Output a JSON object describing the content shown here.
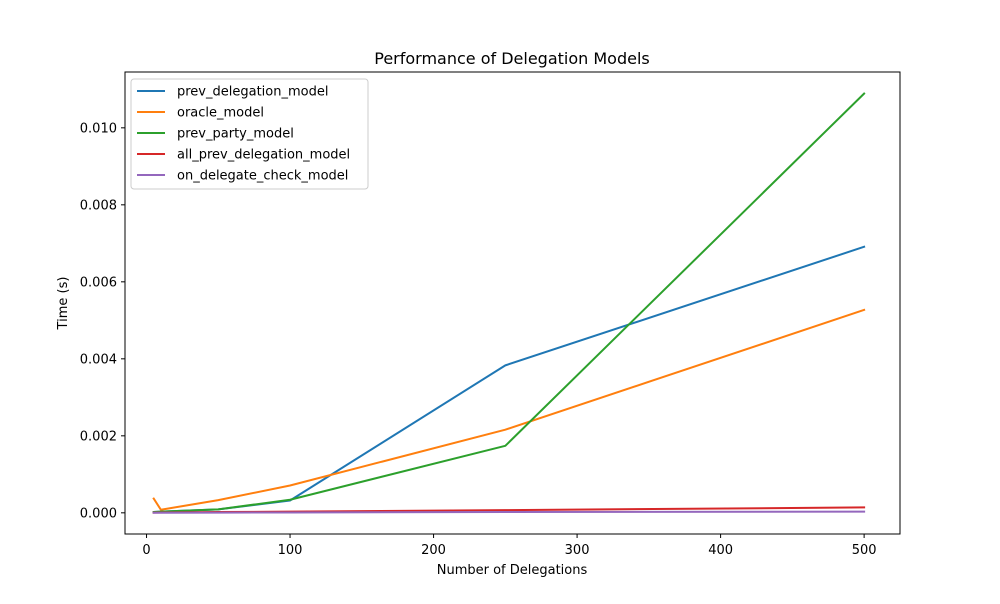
{
  "chart_data": {
    "type": "line",
    "title": "Performance of Delegation Models",
    "xlabel": "Number of Delegations",
    "ylabel": "Time (s)",
    "xlim": [
      -15,
      525
    ],
    "ylim": [
      -0.00055,
      0.01145
    ],
    "xticks": [
      0,
      100,
      200,
      300,
      400,
      500
    ],
    "xtick_labels": [
      "0",
      "100",
      "200",
      "300",
      "400",
      "500"
    ],
    "yticks": [
      0,
      0.002,
      0.004,
      0.006,
      0.008,
      0.01
    ],
    "ytick_labels": [
      "0.000",
      "0.002",
      "0.004",
      "0.006",
      "0.008",
      "0.010"
    ],
    "grid": false,
    "legend_position": "top-left",
    "series": [
      {
        "name": "prev_delegation_model",
        "color": "#1f77b4",
        "x": [
          5,
          10,
          50,
          100,
          250,
          500
        ],
        "y": [
          2e-05,
          3e-05,
          9e-05,
          0.00032,
          0.00383,
          0.00691
        ]
      },
      {
        "name": "oracle_model",
        "color": "#ff7f0e",
        "x": [
          5,
          10,
          50,
          100,
          250,
          500
        ],
        "y": [
          0.00037,
          8e-05,
          0.00033,
          0.00071,
          0.00216,
          0.00527
        ]
      },
      {
        "name": "prev_party_model",
        "color": "#2ca02c",
        "x": [
          5,
          10,
          50,
          100,
          250,
          500
        ],
        "y": [
          2e-05,
          3e-05,
          9e-05,
          0.00034,
          0.00174,
          0.01089
        ]
      },
      {
        "name": "all_prev_delegation_model",
        "color": "#d62728",
        "x": [
          5,
          10,
          50,
          100,
          250,
          500
        ],
        "y": [
          5e-06,
          8e-06,
          2e-05,
          3e-05,
          7e-05,
          0.00014
        ]
      },
      {
        "name": "on_delegate_check_model",
        "color": "#9467bd",
        "x": [
          5,
          10,
          50,
          100,
          250,
          500
        ],
        "y": [
          2e-06,
          3e-06,
          6e-06,
          1e-05,
          2e-05,
          3e-05
        ]
      }
    ]
  }
}
